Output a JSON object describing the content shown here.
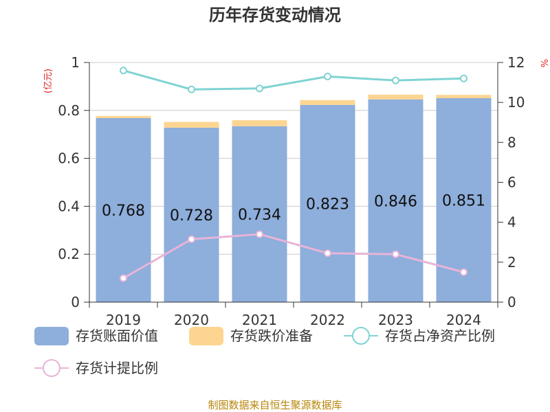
{
  "chart_data": {
    "type": "bar",
    "title": "历年存货变动情况",
    "categories": [
      "2019",
      "2020",
      "2021",
      "2022",
      "2023",
      "2024"
    ],
    "y_left": {
      "unit": "(亿元)",
      "ylim": [
        0,
        1
      ],
      "ticks": [
        "0",
        "0.2",
        "0.4",
        "0.6",
        "0.8",
        "1"
      ]
    },
    "y_right": {
      "unit": "%",
      "ylim": [
        0,
        12
      ],
      "ticks": [
        "0",
        "2",
        "4",
        "6",
        "8",
        "10",
        "12"
      ]
    },
    "series": [
      {
        "name": "存货账面价值",
        "kind": "bar",
        "axis": "left",
        "color": "#8eaedb",
        "values": [
          0.768,
          0.728,
          0.734,
          0.823,
          0.846,
          0.851
        ],
        "labels": [
          "0.768",
          "0.728",
          "0.734",
          "0.823",
          "0.846",
          "0.851"
        ]
      },
      {
        "name": "存货跌价准备",
        "kind": "bar-stack",
        "axis": "left",
        "color": "#fdd591",
        "values": [
          0.009,
          0.024,
          0.025,
          0.02,
          0.02,
          0.014
        ]
      },
      {
        "name": "存货占净资产比例",
        "kind": "line",
        "axis": "right",
        "color": "#7fd3d3",
        "values": [
          11.6,
          10.65,
          10.7,
          11.3,
          11.1,
          11.2
        ]
      },
      {
        "name": "存货计提比例",
        "kind": "line",
        "axis": "right",
        "color": "#e8b4d9",
        "values": [
          1.2,
          3.15,
          3.4,
          2.45,
          2.4,
          1.5
        ]
      }
    ],
    "grid": true,
    "legend_position": "bottom"
  },
  "source_note": "制图数据来自恒生聚源数据库"
}
